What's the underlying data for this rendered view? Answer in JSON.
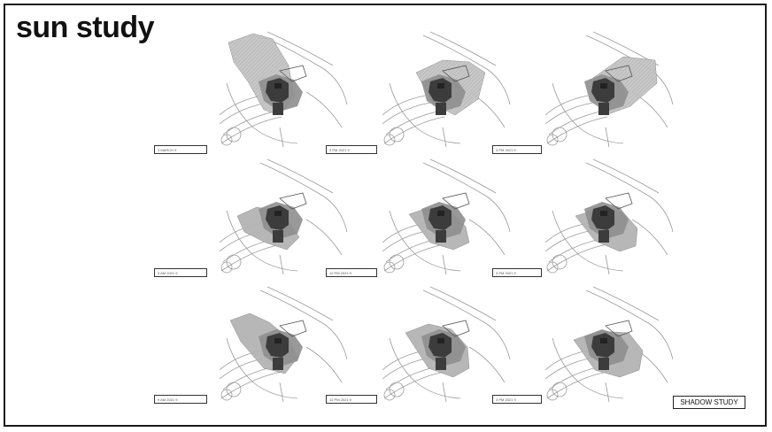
{
  "page": {
    "title": "sun study",
    "badge": "SHADOW STUDY"
  },
  "colors": {
    "shadow_light": "#b4b4b4",
    "shadow_mid": "#8e8e8e",
    "building_dark": "#3c3c3c",
    "linework": "#9a9a9a"
  },
  "labels": {
    "row1": [
      "3 MARCH 9",
      "3 PM 2021 9",
      "3 PM 2021 9"
    ],
    "row2": [
      "3 AM 2021 9",
      "12 PM 2021 9",
      "3 PM 2021 9"
    ],
    "row3": [
      "9 AM 2021 9",
      "12 PM 2021 9",
      "3 PM 2021 9"
    ]
  }
}
